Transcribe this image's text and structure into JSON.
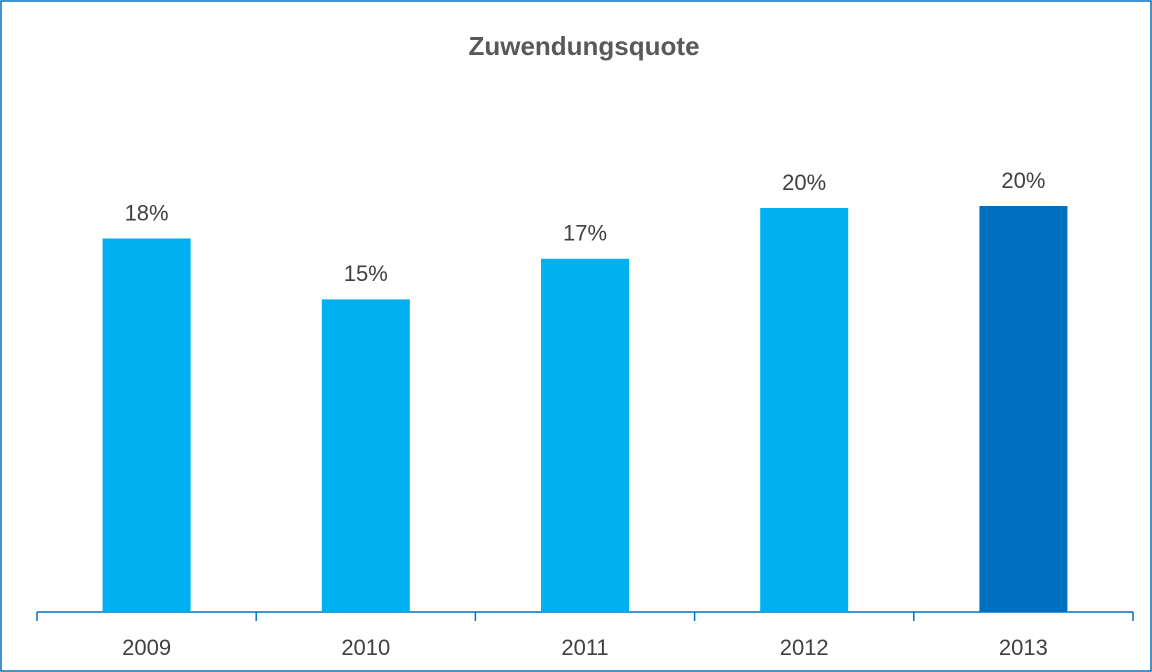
{
  "chart_data": {
    "type": "bar",
    "title": "Zuwendungsquote",
    "categories": [
      "2009",
      "2010",
      "2011",
      "2012",
      "2013"
    ],
    "values": [
      18.4,
      15.4,
      17.4,
      19.9,
      20.0
    ],
    "value_labels": [
      "18%",
      "15%",
      "17%",
      "20%",
      "20%"
    ],
    "colors": [
      "#00b0f0",
      "#00b0f0",
      "#00b0f0",
      "#00b0f0",
      "#0070c0"
    ],
    "ylim": [
      0,
      20
    ]
  }
}
